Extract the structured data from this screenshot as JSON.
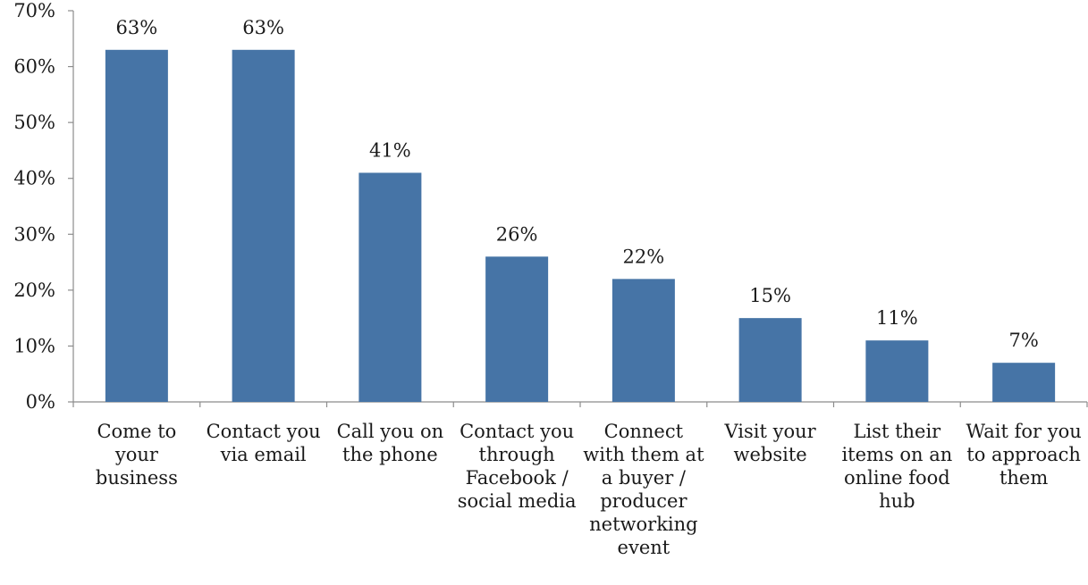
{
  "chart_data": {
    "type": "bar",
    "title": "",
    "xlabel": "",
    "ylabel": "",
    "categories": [
      [
        "Come to",
        "your",
        "business"
      ],
      [
        "Contact you",
        "via email"
      ],
      [
        "Call you on",
        "the phone"
      ],
      [
        "Contact you",
        "through",
        "Facebook /",
        "social media"
      ],
      [
        "Connect",
        "with them at",
        "a buyer /",
        "producer",
        "networking",
        "event"
      ],
      [
        "Visit your",
        "website"
      ],
      [
        "List their",
        "items on an",
        "online food",
        "hub"
      ],
      [
        "Wait for you",
        "to approach",
        "them"
      ]
    ],
    "values": [
      63,
      63,
      41,
      26,
      22,
      15,
      11,
      7
    ],
    "value_labels": [
      "63%",
      "63%",
      "41%",
      "26%",
      "22%",
      "15%",
      "11%",
      "7%"
    ],
    "ylim": [
      0,
      70
    ],
    "yticks": [
      0,
      10,
      20,
      30,
      40,
      50,
      60,
      70
    ],
    "ytick_labels": [
      "0%",
      "10%",
      "20%",
      "30%",
      "40%",
      "50%",
      "60%",
      "70%"
    ],
    "grid": false,
    "legend": "none",
    "bar_color": "#4674a6"
  }
}
